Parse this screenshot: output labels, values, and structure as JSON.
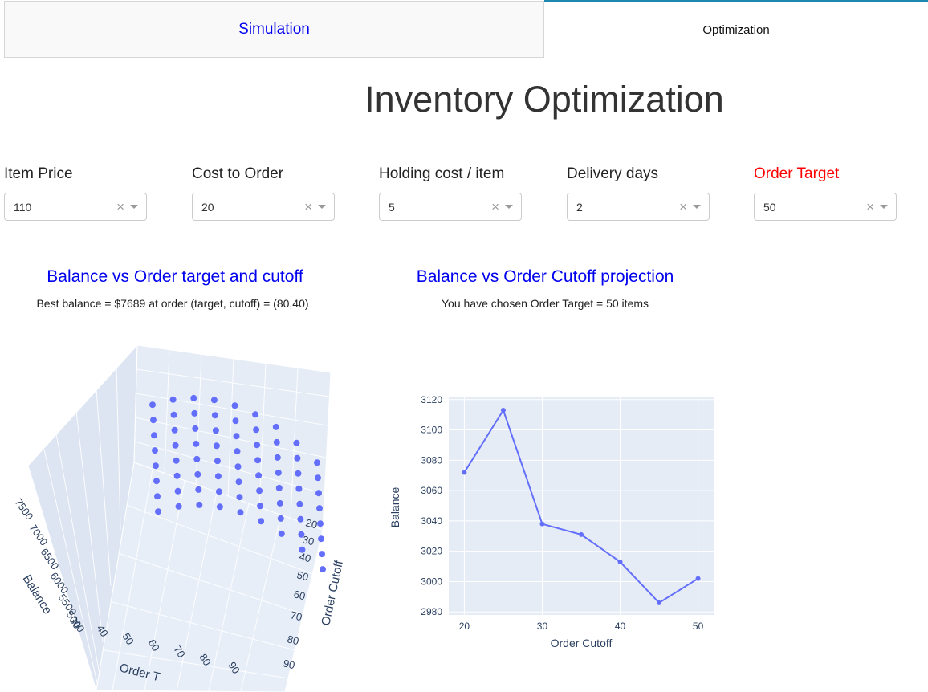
{
  "tabs": [
    {
      "label": "Simulation",
      "active": false
    },
    {
      "label": "Optimization",
      "active": true
    }
  ],
  "page_title": "Inventory Optimization",
  "controls": [
    {
      "label": "Item Price",
      "value": "110",
      "highlight": false
    },
    {
      "label": "Cost to Order",
      "value": "20",
      "highlight": false
    },
    {
      "label": "Holding cost / item",
      "value": "5",
      "highlight": false
    },
    {
      "label": "Delivery days",
      "value": "2",
      "highlight": false
    },
    {
      "label": "Order Target",
      "value": "50",
      "highlight": true
    }
  ],
  "left_chart": {
    "title": "Balance vs Order target and cutoff",
    "subtitle": "Best balance = $7689 at order (target, cutoff) = (80,40)",
    "type": "scatter3d",
    "z_axis": {
      "label": "Balance",
      "ticks": [
        "7500",
        "7000",
        "6500",
        "6000",
        "5500",
        "5000"
      ]
    },
    "y_axis": {
      "label": "Order Cutoff",
      "ticks": [
        "20",
        "30",
        "40",
        "50",
        "60",
        "70",
        "80",
        "90"
      ]
    },
    "x_axis": {
      "label": "Order T",
      "ticks": [
        "30",
        "40",
        "50",
        "60",
        "70",
        "80",
        "90"
      ]
    },
    "marker_color": "#636efa"
  },
  "right_chart": {
    "title": "Balance vs Order Cutoff projection",
    "subtitle": "You have chosen Order Target = 50 items",
    "xlabel": "Order Cutoff",
    "ylabel": "Balance",
    "x_ticks": [
      "20",
      "30",
      "40",
      "50"
    ],
    "y_ticks": [
      "2980",
      "3000",
      "3020",
      "3040",
      "3060",
      "3080",
      "3100",
      "3120"
    ]
  },
  "chart_data": {
    "type": "line",
    "x": [
      20,
      25,
      30,
      35,
      40,
      45,
      50
    ],
    "y": [
      3072,
      3113,
      3038,
      3031,
      3013,
      2986,
      3002
    ],
    "xlim": [
      18,
      52
    ],
    "ylim": [
      2978,
      3122
    ],
    "line_color": "#636efa",
    "plot_bg": "#e5ecf6",
    "grid": true
  }
}
